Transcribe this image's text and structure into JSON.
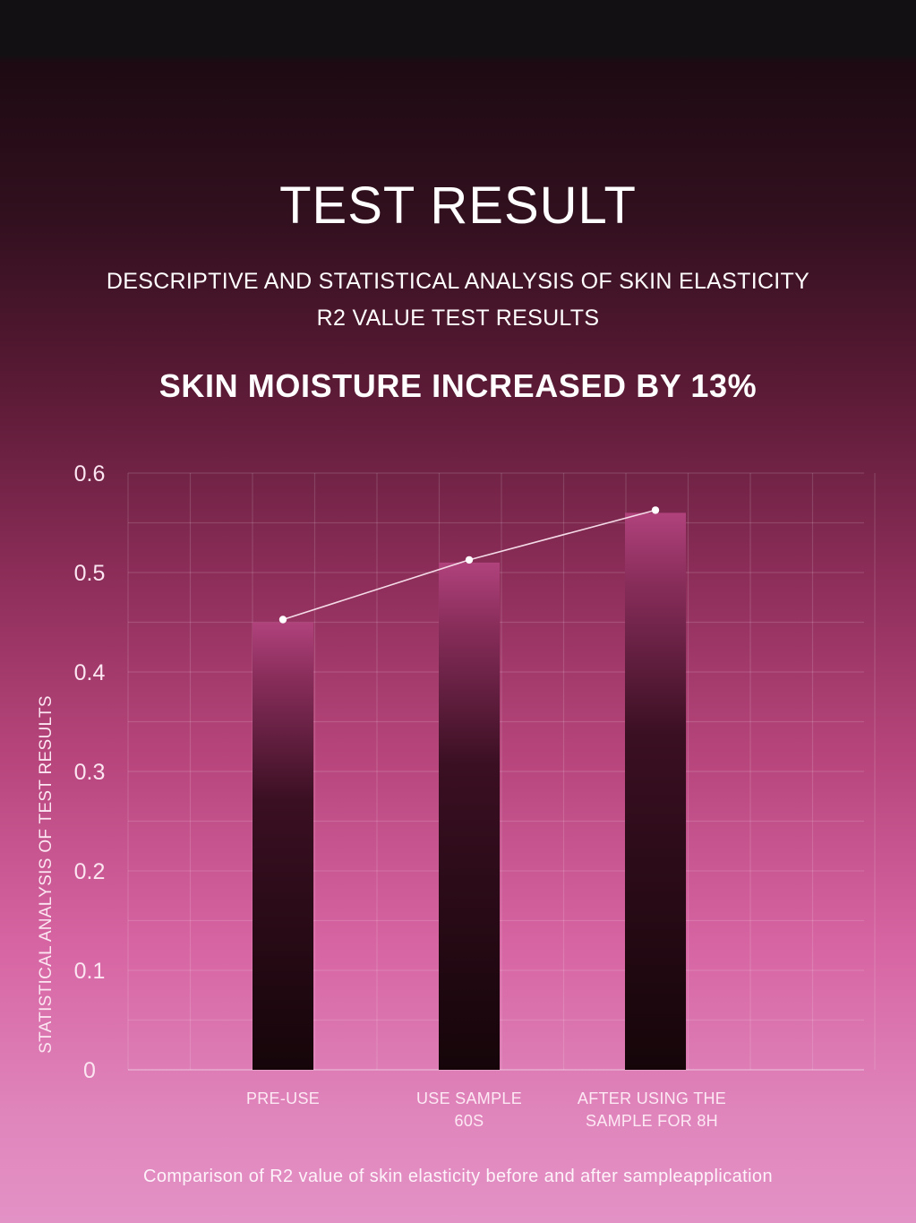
{
  "header": {
    "title": "TEST RESULT",
    "subtitle_line1": "DESCRIPTIVE AND STATISTICAL ANALYSIS OF SKIN ELASTICITY",
    "subtitle_line2": "R2 VALUE TEST RESULTS",
    "headline": "SKIN MOISTURE INCREASED BY 13%"
  },
  "caption": "Comparison of R2 value of skin elasticity before and after sampleapplication",
  "colors": {
    "grid": "#ffffff",
    "bar_top": "#b0427c",
    "bar_bottom": "#150509",
    "line": "#f5dbe7",
    "marker": "#ffffff"
  },
  "chart_data": {
    "type": "bar",
    "categories": [
      [
        "PRE-USE"
      ],
      [
        "USE SAMPLE",
        "60S"
      ],
      [
        "AFTER USING THE",
        "SAMPLE FOR 8H"
      ]
    ],
    "values": [
      0.45,
      0.51,
      0.56
    ],
    "line_values": [
      0.45,
      0.51,
      0.56
    ],
    "ylabel": "STATISTICAL ANALYSIS OF TEST RESULTS",
    "xlabel": "",
    "ylim": [
      0,
      0.6
    ],
    "yticks": [
      0,
      0.1,
      0.2,
      0.3,
      0.4,
      0.5,
      0.6
    ],
    "ytick_labels": [
      "0",
      "0.1",
      "0.2",
      "0.3",
      "0.4",
      "0.5",
      "0.6"
    ],
    "grid": true,
    "legend": "none"
  }
}
